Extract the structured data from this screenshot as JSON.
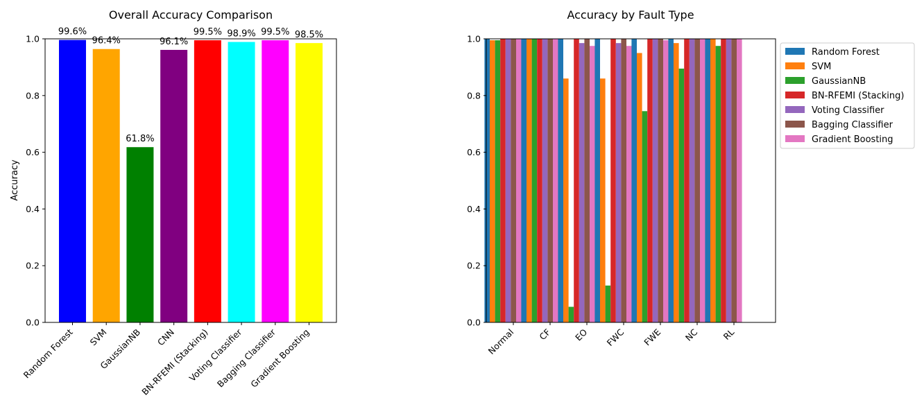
{
  "chart_data": [
    {
      "type": "bar",
      "title": "Overall Accuracy Comparison",
      "xlabel": "",
      "ylabel": "Accuracy",
      "ylim": [
        0,
        1.0
      ],
      "yticks": [
        "0.0",
        "0.2",
        "0.4",
        "0.6",
        "0.8",
        "1.0"
      ],
      "categories": [
        "Random Forest",
        "SVM",
        "GaussianNB",
        "CNN",
        "BN-RFEMI (Stacking)",
        "Voting Classifier",
        "Bagging Classifier",
        "Gradient Boosting"
      ],
      "values": [
        0.996,
        0.964,
        0.618,
        0.961,
        0.995,
        0.989,
        0.995,
        0.985
      ],
      "data_labels": [
        "99.6%",
        "96.4%",
        "61.8%",
        "96.1%",
        "99.5%",
        "98.9%",
        "99.5%",
        "98.5%"
      ],
      "colors": [
        "#0000ff",
        "#ffa500",
        "#008000",
        "#800080",
        "#ff0000",
        "#00ffff",
        "#ff00ff",
        "#ffff00"
      ],
      "grid": false
    },
    {
      "type": "bar",
      "title": "Accuracy by Fault Type",
      "xlabel": "",
      "ylabel": "",
      "ylim": [
        0,
        1.0
      ],
      "yticks": [
        "0.0",
        "0.2",
        "0.4",
        "0.6",
        "0.8",
        "1.0"
      ],
      "categories": [
        "Normal",
        "CF",
        "EO",
        "FWC",
        "FWE",
        "NC",
        "RL"
      ],
      "legend_position": "outside-upper-right",
      "grid": false,
      "series": [
        {
          "name": "Random Forest",
          "color": "#1f77b4",
          "values": [
            1.0,
            1.0,
            1.0,
            1.0,
            1.0,
            1.0,
            1.0
          ]
        },
        {
          "name": "SVM",
          "color": "#ff7f0e",
          "values": [
            0.995,
            1.0,
            0.86,
            0.86,
            0.95,
            0.985,
            1.0
          ]
        },
        {
          "name": "GaussianNB",
          "color": "#2ca02c",
          "values": [
            0.995,
            1.0,
            0.055,
            0.13,
            0.745,
            0.895,
            0.975
          ]
        },
        {
          "name": "BN-RFEMI (Stacking)",
          "color": "#d62728",
          "values": [
            1.0,
            1.0,
            1.0,
            1.0,
            1.0,
            1.0,
            1.0
          ]
        },
        {
          "name": "Voting Classifier",
          "color": "#9467bd",
          "values": [
            1.0,
            1.0,
            0.985,
            0.985,
            1.0,
            1.0,
            1.0
          ]
        },
        {
          "name": "Bagging Classifier",
          "color": "#8c564b",
          "values": [
            1.0,
            1.0,
            1.0,
            1.0,
            1.0,
            1.0,
            1.0
          ]
        },
        {
          "name": "Gradient Boosting",
          "color": "#e377c2",
          "values": [
            1.0,
            1.0,
            0.975,
            0.975,
            0.995,
            1.0,
            1.0
          ]
        }
      ]
    }
  ]
}
